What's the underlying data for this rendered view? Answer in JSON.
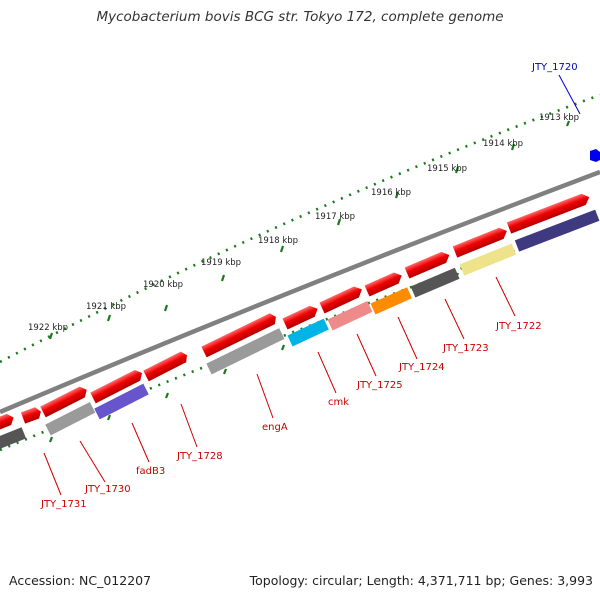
{
  "title": "Mycobacterium bovis BCG str. Tokyo 172, complete genome",
  "footer": {
    "accession": "Accession: NC_012207",
    "topology": "Topology: circular; Length: 4,371,711 bp; Genes: 3,993"
  },
  "ruler_labels": [
    "1913 kbp",
    "1914 kbp",
    "1915 kbp",
    "1916 kbp",
    "1917 kbp",
    "1918 kbp",
    "1919 kbp",
    "1920 kbp",
    "1921 kbp",
    "1922 kbp"
  ],
  "genes": [
    {
      "name": "JTY_1720",
      "color": "#0000cc"
    },
    {
      "name": "JTY_1722",
      "color": "#cc0000"
    },
    {
      "name": "JTY_1723",
      "color": "#cc0000"
    },
    {
      "name": "JTY_1724",
      "color": "#cc0000"
    },
    {
      "name": "JTY_1725",
      "color": "#cc0000"
    },
    {
      "name": "cmk",
      "color": "#cc0000"
    },
    {
      "name": "engA",
      "color": "#cc0000"
    },
    {
      "name": "JTY_1728",
      "color": "#cc0000"
    },
    {
      "name": "fadB3",
      "color": "#cc0000"
    },
    {
      "name": "JTY_1730",
      "color": "#cc0000"
    },
    {
      "name": "JTY_1731",
      "color": "#cc0000"
    }
  ],
  "colors": {
    "backbone": "#7a7a7a",
    "cds_forward": "#ee0000",
    "ticks": "#1a7a1a",
    "category_blue": "#6655cc",
    "category_navy": "#3f3a80",
    "category_cyan": "#00b4e6",
    "category_pink": "#ee8a8a",
    "category_orange": "#ff8c00",
    "category_khaki": "#eee38a",
    "category_gray": "#9a9a9a",
    "category_dark": "#555555"
  }
}
